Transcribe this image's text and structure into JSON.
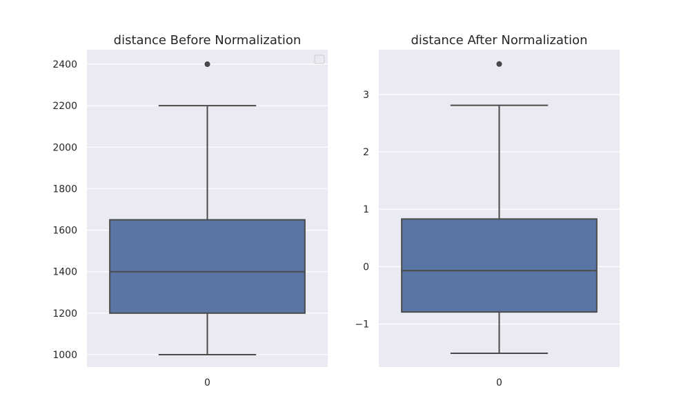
{
  "chart_data": [
    {
      "type": "box",
      "title": "distance Before Normalization",
      "categories": [
        "0"
      ],
      "xlabel": "",
      "ylabel": "",
      "ylim": [
        940,
        2470
      ],
      "yticks": [
        1000,
        1200,
        1400,
        1600,
        1800,
        2000,
        2200,
        2400
      ],
      "grid": true,
      "legend": "top-right (empty)",
      "color": "#5975a4",
      "box": {
        "whisker_low": 1000,
        "q1": 1200,
        "median": 1400,
        "q3": 1650,
        "whisker_high": 2200,
        "outliers": [
          2400
        ]
      }
    },
    {
      "type": "box",
      "title": "distance After Normalization",
      "categories": [
        "0"
      ],
      "xlabel": "",
      "ylabel": "",
      "ylim": [
        -1.75,
        3.78
      ],
      "yticks": [
        -1,
        0,
        1,
        2,
        3
      ],
      "ytick_labels": [
        "−1",
        "0",
        "1",
        "2",
        "3"
      ],
      "grid": true,
      "color": "#5975a4",
      "box": {
        "whisker_low": -1.51,
        "q1": -0.79,
        "median": -0.07,
        "q3": 0.83,
        "whisker_high": 2.81,
        "outliers": [
          3.53
        ]
      }
    }
  ]
}
